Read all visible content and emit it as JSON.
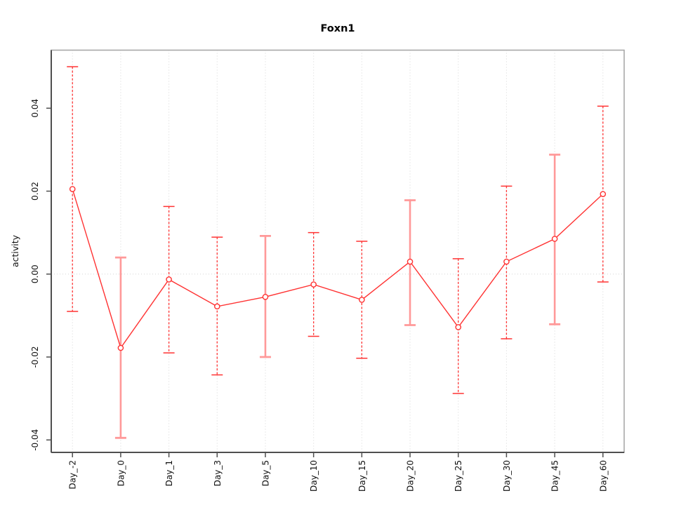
{
  "chart_data": {
    "type": "line",
    "title": "Foxn1",
    "xlabel": "",
    "ylabel": "activity",
    "categories": [
      "Day_-2",
      "Day_0",
      "Day_1",
      "Day_3",
      "Day_5",
      "Day_10",
      "Day_15",
      "Day_20",
      "Day_25",
      "Day_30",
      "Day_45",
      "Day_60"
    ],
    "series": [
      {
        "name": "Foxn1",
        "values": [
          0.0205,
          -0.0178,
          -0.0013,
          -0.0078,
          -0.0055,
          -0.0025,
          -0.0062,
          0.003,
          -0.0128,
          0.003,
          0.0085,
          0.0193
        ],
        "error_high": [
          0.05,
          0.004,
          0.0163,
          0.0089,
          0.0092,
          0.01,
          0.0079,
          0.0178,
          0.0037,
          0.0212,
          0.0288,
          0.0405
        ],
        "error_low": [
          -0.009,
          -0.0395,
          -0.019,
          -0.0243,
          -0.02,
          -0.015,
          -0.0203,
          -0.0123,
          -0.0288,
          -0.0156,
          -0.0121,
          -0.0019
        ],
        "error_bar_styles": [
          "dashed",
          "solid",
          "dashed",
          "dashed",
          "solid",
          "dashed",
          "dashed",
          "solid",
          "dashed",
          "dashed",
          "solid",
          "dashed"
        ]
      }
    ],
    "yticks": [
      -0.04,
      -0.02,
      0,
      0.02,
      0.04
    ],
    "ytick_labels": [
      "-0.04",
      "-0.02",
      "0.00",
      "0.02",
      "0.04"
    ],
    "ylim": [
      -0.043,
      0.054
    ],
    "grid": {
      "vertical_at_categories": true,
      "horizontal_at_zero": true,
      "style": "dotted"
    },
    "legend": "none",
    "marker": "open-circle",
    "colors": {
      "line": "#ff3333",
      "solid_error_bar": "#ff9999",
      "grid": "#d6d6d6",
      "box": "#a8a8a8",
      "axis": "#4f4f4f",
      "text": "#111111"
    }
  }
}
